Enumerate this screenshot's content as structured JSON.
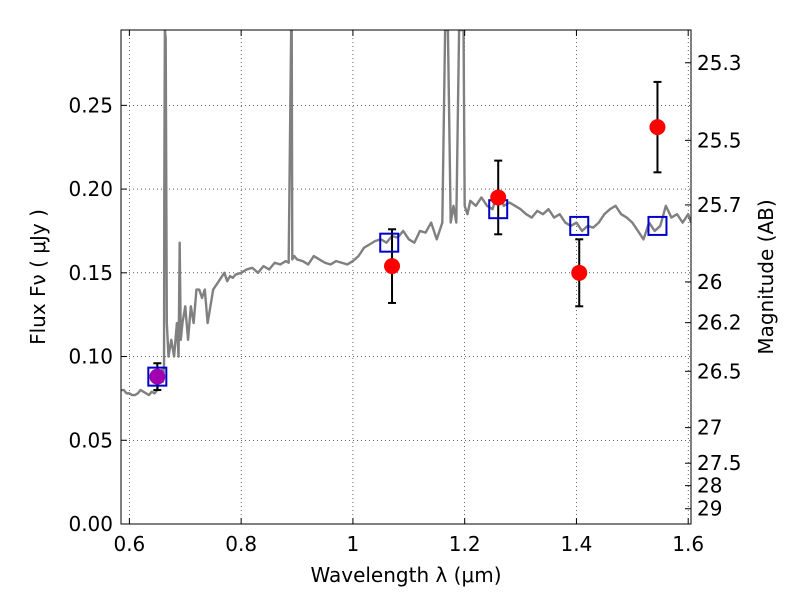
{
  "chart_data": {
    "type": "line",
    "title": "",
    "xlabel": "Wavelength  λ (μm)",
    "ylabel": "Flux  Fν  ( μJy )",
    "y2label": "Magnitude (AB)",
    "xlim": [
      0.585,
      1.605
    ],
    "ylim": [
      0.0,
      0.295
    ],
    "grid": true,
    "x_ticks": [
      0.6,
      0.8,
      1.0,
      1.2,
      1.4,
      1.6
    ],
    "x_tick_labels": [
      "0.6",
      "0.8",
      "1",
      "1.2",
      "1.4",
      "1.6"
    ],
    "y_ticks": [
      0.0,
      0.05,
      0.1,
      0.15,
      0.2,
      0.25
    ],
    "y_tick_labels": [
      "0.00",
      "0.05",
      "0.10",
      "0.15",
      "0.20",
      "0.25"
    ],
    "magnitude_ticks": [
      {
        "mag": 25.3,
        "label": "25.3"
      },
      {
        "mag": 25.5,
        "label": "25.5"
      },
      {
        "mag": 25.7,
        "label": "25.7"
      },
      {
        "mag": 26,
        "label": "26"
      },
      {
        "mag": 26.2,
        "label": "26.2"
      },
      {
        "mag": 26.5,
        "label": "26.5"
      },
      {
        "mag": 27,
        "label": "27"
      },
      {
        "mag": 27.5,
        "label": "27.5"
      },
      {
        "mag": 28,
        "label": "28"
      },
      {
        "mag": 29,
        "label": "29"
      }
    ],
    "colors": {
      "spectrum": "#808080",
      "observed": "#ff0000",
      "model": "#0000cc",
      "overlap": "#a000b0",
      "errorbar": "#000000"
    },
    "series": [
      {
        "kind": "spectrum",
        "x": [
          0.585,
          0.59,
          0.595,
          0.6,
          0.605,
          0.61,
          0.615,
          0.62,
          0.625,
          0.63,
          0.635,
          0.64,
          0.645,
          0.65,
          0.652,
          0.655,
          0.658,
          0.66,
          0.662,
          0.6625,
          0.6635,
          0.665,
          0.667,
          0.67,
          0.675,
          0.68,
          0.685,
          0.688,
          0.69,
          0.692,
          0.695,
          0.7,
          0.705,
          0.71,
          0.715,
          0.72,
          0.725,
          0.73,
          0.735,
          0.74,
          0.745,
          0.75,
          0.76,
          0.77,
          0.775,
          0.78,
          0.785,
          0.79,
          0.8,
          0.81,
          0.82,
          0.83,
          0.84,
          0.85,
          0.86,
          0.87,
          0.88,
          0.885,
          0.8895,
          0.8905,
          0.8915,
          0.895,
          0.9,
          0.91,
          0.92,
          0.93,
          0.94,
          0.95,
          0.96,
          0.97,
          0.98,
          0.99,
          1.0,
          1.01,
          1.02,
          1.03,
          1.04,
          1.05,
          1.06,
          1.07,
          1.08,
          1.09,
          1.1,
          1.11,
          1.12,
          1.13,
          1.14,
          1.15,
          1.155,
          1.16,
          1.165,
          1.17,
          1.175,
          1.18,
          1.185,
          1.19,
          1.195,
          1.198,
          1.2,
          1.205,
          1.21,
          1.22,
          1.23,
          1.24,
          1.25,
          1.26,
          1.27,
          1.28,
          1.29,
          1.3,
          1.31,
          1.32,
          1.33,
          1.34,
          1.35,
          1.36,
          1.37,
          1.38,
          1.39,
          1.4,
          1.41,
          1.42,
          1.43,
          1.44,
          1.45,
          1.46,
          1.47,
          1.48,
          1.49,
          1.5,
          1.51,
          1.52,
          1.53,
          1.54,
          1.55,
          1.56,
          1.57,
          1.58,
          1.59,
          1.6,
          1.605
        ],
        "y": [
          0.08,
          0.08,
          0.078,
          0.078,
          0.077,
          0.077,
          0.078,
          0.08,
          0.079,
          0.078,
          0.077,
          0.079,
          0.078,
          0.08,
          0.085,
          0.089,
          0.092,
          0.085,
          0.095,
          0.2,
          0.295,
          0.29,
          0.12,
          0.1,
          0.11,
          0.1,
          0.12,
          0.1,
          0.168,
          0.11,
          0.12,
          0.13,
          0.11,
          0.13,
          0.12,
          0.14,
          0.14,
          0.135,
          0.14,
          0.12,
          0.13,
          0.14,
          0.145,
          0.15,
          0.145,
          0.148,
          0.147,
          0.149,
          0.15,
          0.152,
          0.153,
          0.15,
          0.154,
          0.152,
          0.156,
          0.155,
          0.157,
          0.156,
          0.295,
          0.295,
          0.158,
          0.16,
          0.158,
          0.157,
          0.155,
          0.16,
          0.158,
          0.156,
          0.155,
          0.157,
          0.156,
          0.155,
          0.157,
          0.16,
          0.165,
          0.167,
          0.169,
          0.17,
          0.168,
          0.172,
          0.171,
          0.175,
          0.17,
          0.168,
          0.175,
          0.174,
          0.18,
          0.17,
          0.175,
          0.18,
          0.295,
          0.295,
          0.18,
          0.19,
          0.18,
          0.295,
          0.295,
          0.295,
          0.19,
          0.185,
          0.193,
          0.19,
          0.195,
          0.19,
          0.188,
          0.2,
          0.19,
          0.192,
          0.19,
          0.188,
          0.185,
          0.183,
          0.187,
          0.185,
          0.188,
          0.183,
          0.185,
          0.18,
          0.178,
          0.18,
          0.175,
          0.178,
          0.177,
          0.18,
          0.185,
          0.188,
          0.19,
          0.185,
          0.183,
          0.18,
          0.175,
          0.17,
          0.18,
          0.175,
          0.178,
          0.19,
          0.183,
          0.185,
          0.18,
          0.185,
          0.18
        ]
      },
      {
        "kind": "model",
        "x": [
          0.65,
          1.065,
          1.26,
          1.405,
          1.545
        ],
        "y": [
          0.088,
          0.168,
          0.188,
          0.178,
          0.178
        ]
      },
      {
        "kind": "observed",
        "x": [
          0.65,
          1.07,
          1.26,
          1.405,
          1.545
        ],
        "y": [
          0.088,
          0.154,
          0.195,
          0.15,
          0.237
        ],
        "yerr": [
          0.008,
          0.022,
          0.022,
          0.02,
          0.027
        ]
      }
    ]
  }
}
